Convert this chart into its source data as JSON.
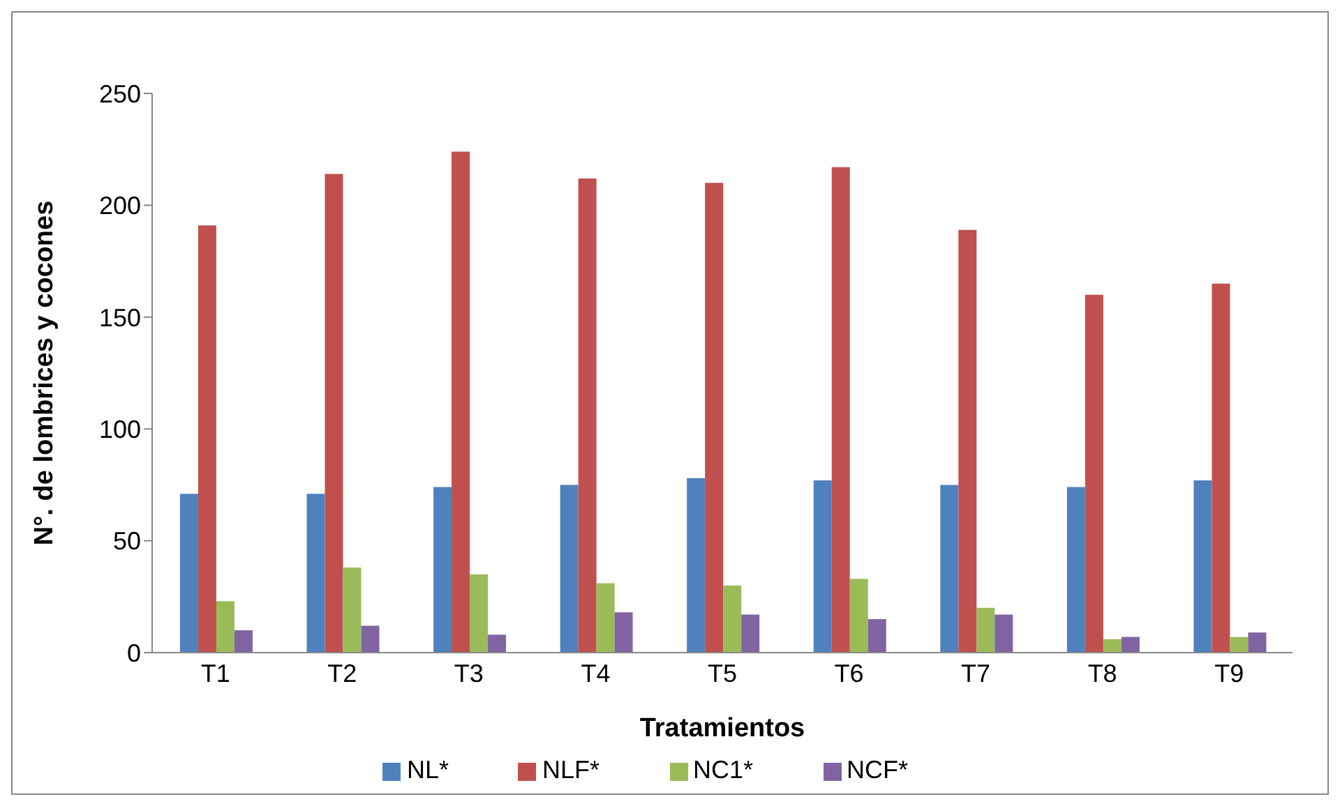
{
  "chart_data": {
    "type": "bar",
    "xlabel": "Tratamientos",
    "ylabel": "N°. de lombrices y cocones",
    "categories": [
      "T1",
      "T2",
      "T3",
      "T4",
      "T5",
      "T6",
      "T7",
      "T8",
      "T9"
    ],
    "series": [
      {
        "name": "NL*",
        "color": "#4f81bd",
        "values": [
          71,
          71,
          74,
          75,
          78,
          77,
          75,
          74,
          77
        ]
      },
      {
        "name": "NLF*",
        "color": "#c0504d",
        "values": [
          191,
          214,
          224,
          212,
          210,
          217,
          189,
          160,
          165
        ]
      },
      {
        "name": "NC1*",
        "color": "#9bbb59",
        "values": [
          23,
          38,
          35,
          31,
          30,
          33,
          20,
          6,
          7
        ]
      },
      {
        "name": "NCF*",
        "color": "#8064a2",
        "values": [
          10,
          12,
          8,
          18,
          17,
          15,
          17,
          7,
          9
        ]
      }
    ],
    "ylim": [
      0,
      250
    ],
    "yticks": [
      0,
      50,
      100,
      150,
      200,
      250
    ],
    "grid": false,
    "legend": "bottom"
  }
}
